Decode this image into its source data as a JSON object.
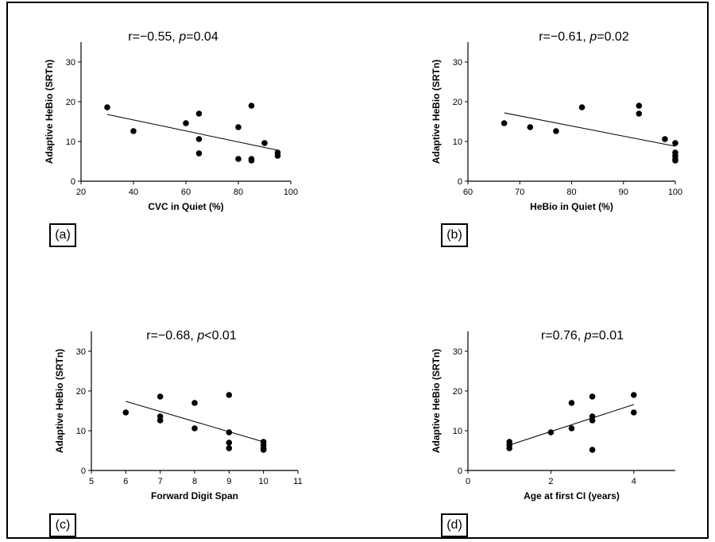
{
  "panels": [
    {
      "tag": "(a)",
      "stat": {
        "r": "r=−0.55,",
        "p": "p",
        "pval": "=0.04"
      }
    },
    {
      "tag": "(b)",
      "stat": {
        "r": "r=−0.61,",
        "p": "p",
        "pval": "=0.02"
      }
    },
    {
      "tag": "(c)",
      "stat": {
        "r": "r=−0.68,",
        "p": "p",
        "pval": "<0.01"
      }
    },
    {
      "tag": "(d)",
      "stat": {
        "r": "r=0.76,",
        "p": "p",
        "pval": "=0.01"
      }
    }
  ],
  "chart_data": [
    {
      "type": "scatter",
      "xlabel": "CVC in Quiet (%)",
      "ylabel": "Adaptive HeBio (SRTn)",
      "xlim": [
        20,
        100
      ],
      "ylim": [
        0,
        35
      ],
      "xticks": [
        20,
        40,
        60,
        80,
        100
      ],
      "yticks": [
        0,
        10,
        20,
        30
      ],
      "points": [
        [
          30,
          18.6
        ],
        [
          40,
          12.6
        ],
        [
          60,
          14.6
        ],
        [
          65,
          17.0
        ],
        [
          65,
          10.6
        ],
        [
          65,
          7.0
        ],
        [
          80,
          13.6
        ],
        [
          80,
          5.6
        ],
        [
          85,
          19.0
        ],
        [
          85,
          5.6
        ],
        [
          85,
          5.2
        ],
        [
          90,
          9.6
        ],
        [
          95,
          7.2
        ],
        [
          95,
          6.4
        ]
      ],
      "fit": [
        [
          30,
          16.8
        ],
        [
          95,
          7.8
        ]
      ],
      "marker_color": "#000000"
    },
    {
      "type": "scatter",
      "xlabel": "HeBio in Quiet (%)",
      "ylabel": "Adaptive HeBio (SRTn)",
      "xlim": [
        60,
        100
      ],
      "ylim": [
        0,
        35
      ],
      "xticks": [
        60,
        70,
        80,
        90,
        100
      ],
      "yticks": [
        0,
        10,
        20,
        30
      ],
      "points": [
        [
          67,
          14.6
        ],
        [
          72,
          13.6
        ],
        [
          77,
          12.6
        ],
        [
          82,
          18.6
        ],
        [
          93,
          19.0
        ],
        [
          93,
          17.0
        ],
        [
          98,
          10.6
        ],
        [
          100,
          9.6
        ],
        [
          100,
          7.2
        ],
        [
          100,
          6.4
        ],
        [
          100,
          5.6
        ],
        [
          100,
          5.2
        ]
      ],
      "fit": [
        [
          67,
          17.2
        ],
        [
          100,
          8.8
        ]
      ],
      "marker_color": "#000000"
    },
    {
      "type": "scatter",
      "xlabel": "Forward Digit Span",
      "ylabel": "Adaptive HeBio (SRTn)",
      "xlim": [
        5,
        11
      ],
      "ylim": [
        0,
        35
      ],
      "xticks": [
        5,
        6,
        7,
        8,
        9,
        10,
        11
      ],
      "yticks": [
        0,
        10,
        20,
        30
      ],
      "points": [
        [
          6,
          14.6
        ],
        [
          7,
          18.6
        ],
        [
          7,
          13.6
        ],
        [
          7,
          12.6
        ],
        [
          8,
          17.0
        ],
        [
          8,
          10.6
        ],
        [
          9,
          19.0
        ],
        [
          9,
          9.6
        ],
        [
          9,
          7.0
        ],
        [
          9,
          5.6
        ],
        [
          10,
          7.2
        ],
        [
          10,
          6.4
        ],
        [
          10,
          5.6
        ],
        [
          10,
          5.2
        ]
      ],
      "fit": [
        [
          6,
          17.4
        ],
        [
          10,
          7.2
        ]
      ],
      "marker_color": "#000000"
    },
    {
      "type": "scatter",
      "xlabel": "Age at first CI (years)",
      "ylabel": "Adaptive HeBio (SRTn)",
      "xlim": [
        0,
        5
      ],
      "ylim": [
        0,
        35
      ],
      "xticks": [
        0,
        2,
        4
      ],
      "yticks": [
        0,
        10,
        20,
        30
      ],
      "points": [
        [
          1,
          7.2
        ],
        [
          1,
          6.4
        ],
        [
          1,
          5.6
        ],
        [
          2,
          9.6
        ],
        [
          2.5,
          17.0
        ],
        [
          2.5,
          10.6
        ],
        [
          3,
          18.6
        ],
        [
          3,
          13.6
        ],
        [
          3,
          12.6
        ],
        [
          3,
          5.2
        ],
        [
          4,
          19.0
        ],
        [
          4,
          14.6
        ]
      ],
      "fit": [
        [
          1,
          6.4
        ],
        [
          4,
          16.6
        ]
      ],
      "marker_color": "#000000"
    }
  ]
}
